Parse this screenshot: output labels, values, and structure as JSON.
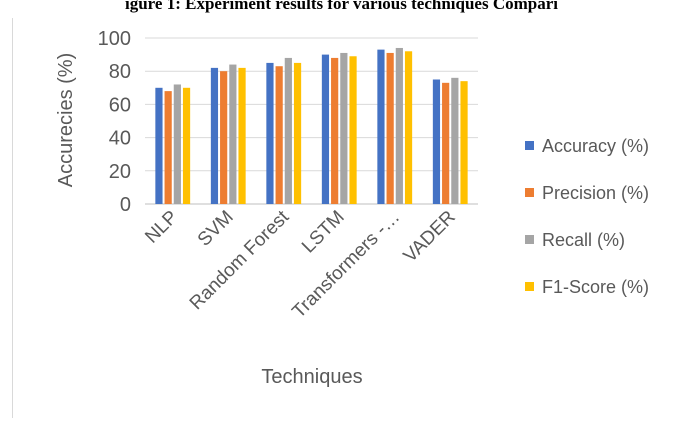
{
  "caption": "igure 1: Experiment results for various techniques Compari",
  "chart_data": {
    "type": "bar",
    "title": "",
    "xlabel": "Techniques",
    "ylabel": "Accurecies (%)",
    "ylim": [
      0,
      100
    ],
    "yticks": [
      0,
      20,
      40,
      60,
      80,
      100
    ],
    "grid": true,
    "legend_position": "right",
    "categories": [
      "NLP",
      "SVM",
      "Random Forest",
      "LSTM",
      "Transformers -…",
      "VADER"
    ],
    "series": [
      {
        "name": "Accuracy (%)",
        "color": "#4472c4",
        "values": [
          70,
          82,
          85,
          90,
          93,
          75
        ]
      },
      {
        "name": "Precision (%)",
        "color": "#ed7d31",
        "values": [
          68,
          80,
          83,
          88,
          91,
          73
        ]
      },
      {
        "name": "Recall (%)",
        "color": "#a5a5a5",
        "values": [
          72,
          84,
          88,
          91,
          94,
          76
        ]
      },
      {
        "name": "F1-Score (%)",
        "color": "#ffc000",
        "values": [
          70,
          82,
          85,
          89,
          92,
          74
        ]
      }
    ]
  }
}
